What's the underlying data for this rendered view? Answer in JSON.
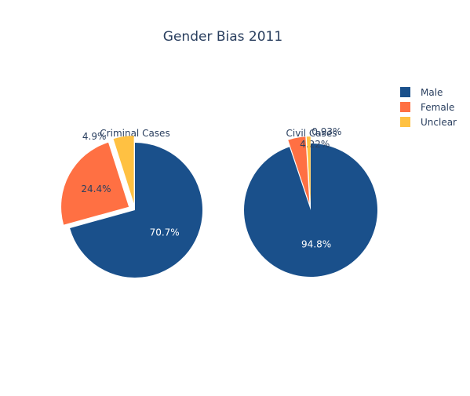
{
  "chart_data": {
    "type": "pie",
    "title": "Gender Bias 2011",
    "legend": {
      "placement": "top-right",
      "entries": [
        {
          "name": "Male",
          "color": "#1a508b"
        },
        {
          "name": "Female",
          "color": "#ff7043"
        },
        {
          "name": "Unclear",
          "color": "#ffc142"
        }
      ]
    },
    "pies": [
      {
        "title": "Criminal Cases",
        "categories": [
          "Male",
          "Female",
          "Unclear"
        ],
        "values": [
          70.7,
          24.4,
          4.9
        ],
        "labels": [
          "70.7%",
          "24.4%",
          "4.9%"
        ],
        "pulled": [
          false,
          true,
          true
        ]
      },
      {
        "title": "Civil Cases",
        "categories": [
          "Male",
          "Female",
          "Unclear"
        ],
        "values": [
          94.85,
          4.22,
          0.93
        ],
        "labels": [
          "94.8%",
          "4.22%",
          "0.93%"
        ],
        "pulled": [
          false,
          true,
          true
        ]
      }
    ]
  }
}
